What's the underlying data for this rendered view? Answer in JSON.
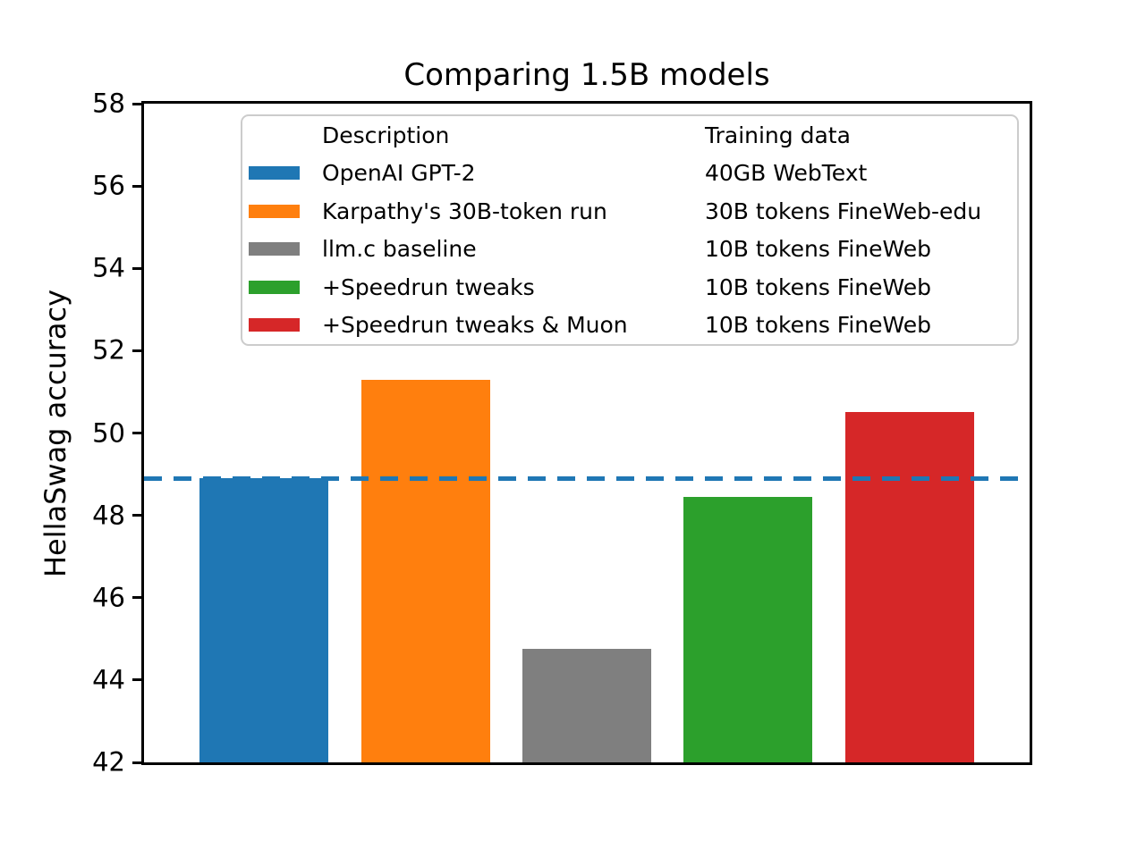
{
  "chart_data": {
    "type": "bar",
    "title": "Comparing 1.5B models",
    "ylabel": "HellaSwag accuracy",
    "xlabel": "",
    "ylim": [
      42,
      58
    ],
    "yticks": [
      42,
      44,
      46,
      48,
      50,
      52,
      54,
      56,
      58
    ],
    "grid": false,
    "legend": {
      "position": "upper center",
      "columns": [
        "Description",
        "Training data"
      ]
    },
    "baseline": {
      "value": 48.9,
      "style": "dashed",
      "color": "#1f77b4"
    },
    "series": [
      {
        "label": "OpenAI GPT-2",
        "training_data": "40GB WebText",
        "value": 48.9,
        "color": "#1f77b4"
      },
      {
        "label": "Karpathy's 30B-token run",
        "training_data": "30B tokens FineWeb-edu",
        "value": 51.3,
        "color": "#ff7f0e"
      },
      {
        "label": "llm.c baseline",
        "training_data": "10B tokens FineWeb",
        "value": 44.75,
        "color": "#7f7f7f"
      },
      {
        "label": "+Speedrun tweaks",
        "training_data": "10B tokens FineWeb",
        "value": 48.45,
        "color": "#2ca02c"
      },
      {
        "label": "+Speedrun tweaks & Muon",
        "training_data": "10B tokens FineWeb",
        "value": 50.5,
        "color": "#d62728"
      }
    ]
  }
}
